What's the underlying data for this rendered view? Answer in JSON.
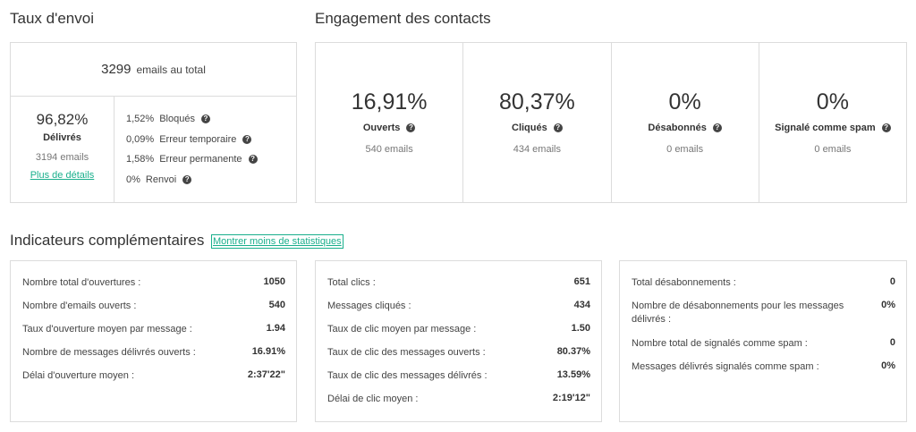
{
  "delivery": {
    "title": "Taux d'envoi",
    "total_number": "3299",
    "total_label": "emails au total",
    "delivered_pct": "96,82%",
    "delivered_label": "Délivrés",
    "delivered_count": "3194 emails",
    "details_link": "Plus de détails",
    "errors": [
      {
        "pct": "1,52%",
        "label": "Bloqués"
      },
      {
        "pct": "0,09%",
        "label": "Erreur temporaire"
      },
      {
        "pct": "1,58%",
        "label": "Erreur permanente"
      },
      {
        "pct": "0%",
        "label": "Renvoi"
      }
    ]
  },
  "engagement": {
    "title": "Engagement des contacts",
    "items": [
      {
        "pct": "16,91%",
        "label": "Ouverts",
        "sub": "540 emails"
      },
      {
        "pct": "80,37%",
        "label": "Cliqués",
        "sub": "434 emails"
      },
      {
        "pct": "0%",
        "label": "Désabonnés",
        "sub": "0 emails"
      },
      {
        "pct": "0%",
        "label": "Signalé comme spam",
        "sub": "0 emails"
      }
    ]
  },
  "indicators": {
    "title": "Indicateurs complémentaires",
    "toggle_link": "Montrer moins de statistiques",
    "opens": [
      {
        "label": "Nombre total d'ouvertures :",
        "value": "1050"
      },
      {
        "label": "Nombre d'emails ouverts :",
        "value": "540"
      },
      {
        "label": "Taux d'ouverture moyen par message :",
        "value": "1.94"
      },
      {
        "label": "Nombre de messages délivrés ouverts :",
        "value": "16.91%"
      },
      {
        "label": "Délai d'ouverture moyen :",
        "value": "2:37'22\""
      }
    ],
    "clicks": [
      {
        "label": "Total clics :",
        "value": "651"
      },
      {
        "label": "Messages cliqués :",
        "value": "434"
      },
      {
        "label": "Taux de clic moyen par message :",
        "value": "1.50"
      },
      {
        "label": "Taux de clic des messages ouverts :",
        "value": "80.37%"
      },
      {
        "label": "Taux de clic des messages délivrés :",
        "value": "13.59%"
      },
      {
        "label": "Délai de clic moyen :",
        "value": "2:19'12\""
      }
    ],
    "unsubs": [
      {
        "label": "Total désabonnements :",
        "value": "0"
      },
      {
        "label": "Nombre de désabonnements pour les messages délivrés :",
        "value": "0%"
      },
      {
        "label": "Nombre total de signalés comme spam :",
        "value": "0"
      },
      {
        "label": "Messages délivrés signalés comme spam :",
        "value": "0%"
      }
    ]
  },
  "colors": {
    "accent": "#1aaf8c",
    "border": "#dcdcdc"
  },
  "icons": {
    "help": "question-circle-icon"
  }
}
